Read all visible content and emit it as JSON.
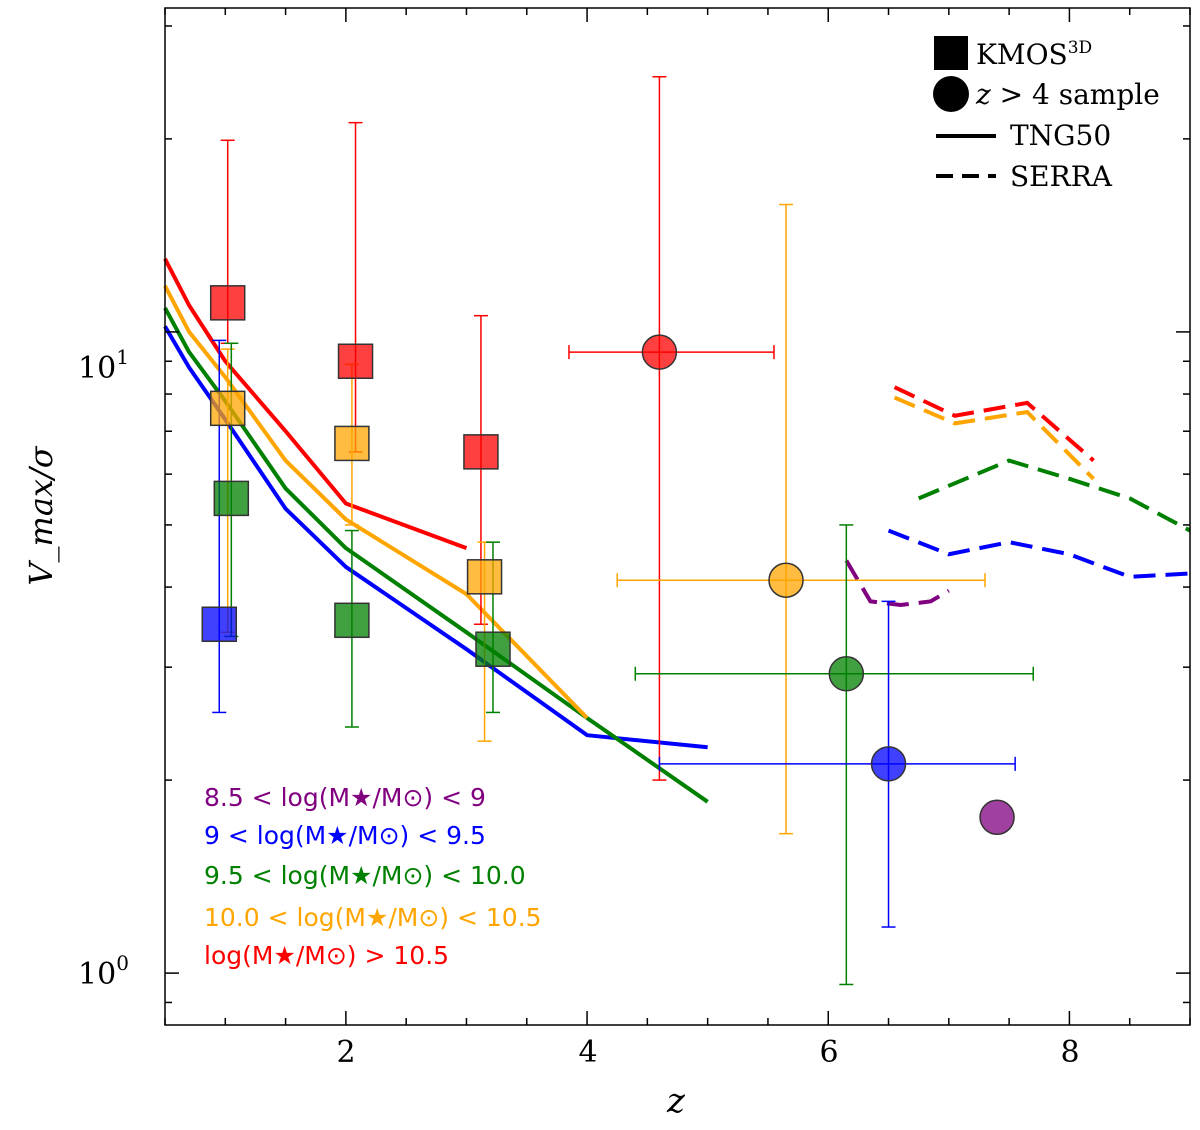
{
  "chart_data": {
    "type": "scatter",
    "xlabel": "z",
    "ylabel": "V_max/σ",
    "xscale": "linear",
    "yscale": "log",
    "xlim": [
      0.5,
      9.0
    ],
    "ylim": [
      0.83,
      32.0
    ],
    "x_ticks": [
      2,
      4,
      6,
      8
    ],
    "x_tick_labels": [
      "2",
      "4",
      "6",
      "8"
    ],
    "y_major_ticks": [
      1,
      10
    ],
    "y_tick_labels": [
      {
        "base": "10",
        "exp": "0"
      },
      {
        "base": "10",
        "exp": "1"
      }
    ],
    "mass_bins": [
      {
        "id": "m1",
        "label": "8.5 < log(M★/M⊙) < 9",
        "color": "#800080"
      },
      {
        "id": "m2",
        "label": "9 < log(M★/M⊙) < 9.5",
        "color": "#0000ff"
      },
      {
        "id": "m3",
        "label": "9.5 < log(M★/M⊙) < 10.0",
        "color": "#008000"
      },
      {
        "id": "m4",
        "label": "10.0 < log(M★/M⊙) < 10.5",
        "color": "#ffa500"
      },
      {
        "id": "m5",
        "label": "log(M★/M⊙) > 10.5",
        "color": "#ff0000"
      }
    ],
    "kmos3d_points": [
      {
        "bin": "m5",
        "x": 1.02,
        "y": 11.1,
        "yerr_low": 9.6,
        "yerr_high": 19.9
      },
      {
        "bin": "m4",
        "x": 1.02,
        "y": 7.6,
        "yerr_low": 3.4,
        "yerr_high": 9.4
      },
      {
        "bin": "m3",
        "x": 1.05,
        "y": 5.5,
        "yerr_low": 3.35,
        "yerr_high": 9.6
      },
      {
        "bin": "m2",
        "x": 0.95,
        "y": 3.5,
        "yerr_low": 2.55,
        "yerr_high": 9.7
      },
      {
        "bin": "m5",
        "x": 2.08,
        "y": 9.0,
        "yerr_low": 6.5,
        "yerr_high": 21.2
      },
      {
        "bin": "m4",
        "x": 2.05,
        "y": 6.7,
        "yerr_low": 5.0,
        "yerr_high": 8.9
      },
      {
        "bin": "m3",
        "x": 2.05,
        "y": 3.55,
        "yerr_low": 2.42,
        "yerr_high": 4.9
      },
      {
        "bin": "m5",
        "x": 3.12,
        "y": 6.5,
        "yerr_low": 3.5,
        "yerr_high": 10.6
      },
      {
        "bin": "m4",
        "x": 3.15,
        "y": 4.15,
        "yerr_low": 2.3,
        "yerr_high": 4.7
      },
      {
        "bin": "m3",
        "x": 3.22,
        "y": 3.2,
        "yerr_low": 2.55,
        "yerr_high": 4.7
      }
    ],
    "highz_points": [
      {
        "bin": "m5",
        "x": 4.6,
        "y": 9.3,
        "xerr": [
          3.85,
          5.55
        ],
        "yerr": [
          2.0,
          25.0
        ]
      },
      {
        "bin": "m4",
        "x": 5.65,
        "y": 4.1,
        "xerr": [
          4.25,
          7.3
        ],
        "yerr": [
          1.65,
          15.8
        ]
      },
      {
        "bin": "m3",
        "x": 6.15,
        "y": 2.93,
        "xerr": [
          4.4,
          7.7
        ],
        "yerr": [
          0.96,
          5.0
        ]
      },
      {
        "bin": "m2",
        "x": 6.5,
        "y": 2.12,
        "xerr": [
          4.6,
          7.55
        ],
        "yerr": [
          1.18,
          3.8
        ]
      },
      {
        "bin": "m1",
        "x": 7.4,
        "y": 1.75,
        "xerr": null,
        "yerr": null
      }
    ],
    "tng50_lines": [
      {
        "bin": "m2",
        "x": [
          0.5,
          0.7,
          1.0,
          1.5,
          2.0,
          3.0,
          4.0,
          5.0
        ],
        "y": [
          10.2,
          8.8,
          7.3,
          5.3,
          4.3,
          3.2,
          2.35,
          2.25
        ]
      },
      {
        "bin": "m3",
        "x": [
          0.5,
          0.7,
          1.0,
          1.5,
          2.0,
          3.0,
          4.0,
          5.0
        ],
        "y": [
          10.9,
          9.3,
          7.8,
          5.7,
          4.6,
          3.4,
          2.5,
          1.85
        ]
      },
      {
        "bin": "m4",
        "x": [
          0.5,
          0.7,
          1.0,
          1.5,
          2.0,
          3.0,
          4.0
        ],
        "y": [
          11.8,
          10.0,
          8.5,
          6.3,
          5.1,
          3.9,
          2.5
        ]
      },
      {
        "bin": "m5",
        "x": [
          0.5,
          0.7,
          1.0,
          1.5,
          2.0,
          3.0
        ],
        "y": [
          13.0,
          11.0,
          9.0,
          7.0,
          5.4,
          4.6
        ]
      }
    ],
    "serra_lines": [
      {
        "bin": "m1",
        "x": [
          6.15,
          6.35,
          6.6,
          6.85,
          7.0
        ],
        "y": [
          4.4,
          3.8,
          3.75,
          3.8,
          3.95
        ]
      },
      {
        "bin": "m2",
        "x": [
          6.5,
          7.0,
          7.5,
          8.0,
          8.5,
          9.0
        ],
        "y": [
          4.9,
          4.5,
          4.7,
          4.5,
          4.15,
          4.2
        ]
      },
      {
        "bin": "m3",
        "x": [
          6.75,
          7.5,
          8.0,
          8.5,
          9.0
        ],
        "y": [
          5.5,
          6.3,
          5.9,
          5.5,
          4.9
        ]
      },
      {
        "bin": "m4",
        "x": [
          6.55,
          7.05,
          7.65,
          8.2
        ],
        "y": [
          7.9,
          7.2,
          7.5,
          5.9
        ]
      },
      {
        "bin": "m5",
        "x": [
          6.55,
          7.05,
          7.65,
          8.2
        ],
        "y": [
          8.2,
          7.4,
          7.75,
          6.3
        ]
      }
    ],
    "legend": {
      "position": "top-right",
      "kmos_label": "KMOS",
      "kmos_sup": "3D",
      "highz_label": " sample",
      "highz_condition_var": "z",
      "highz_condition_op": " > 4",
      "tng_label": "TNG50",
      "serra_label": "SERRA"
    },
    "mass_legend_position": "bottom-left"
  }
}
